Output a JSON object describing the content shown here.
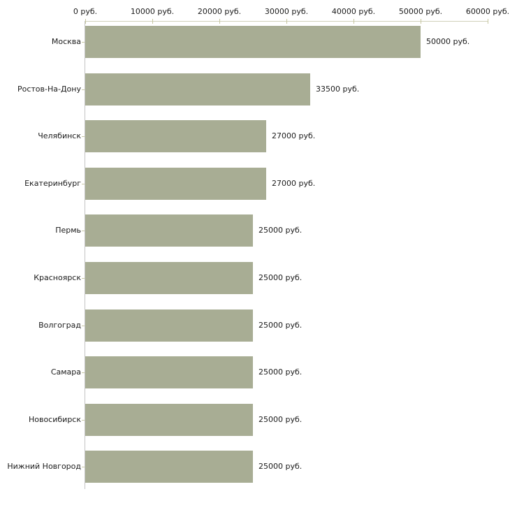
{
  "chart_data": {
    "type": "bar",
    "orientation": "horizontal",
    "title": "",
    "xlabel": "",
    "ylabel": "",
    "grid": false,
    "legend": false,
    "categories": [
      "Москва",
      "Ростов-На-Дону",
      "Челябинск",
      "Екатеринбург",
      "Пермь",
      "Красноярск",
      "Волгоград",
      "Самара",
      "Новосибирск",
      "Нижний Новгород"
    ],
    "values": [
      50000,
      33500,
      27000,
      27000,
      25000,
      25000,
      25000,
      25000,
      25000,
      25000
    ],
    "value_labels": [
      "50000 руб.",
      "33500 руб.",
      "27000 руб.",
      "27000 руб.",
      "25000 руб.",
      "25000 руб.",
      "25000 руб.",
      "25000 руб.",
      "25000 руб.",
      "25000 руб."
    ],
    "x_axis": {
      "position": "top",
      "min": 0,
      "max": 60000,
      "ticks": [
        0,
        10000,
        20000,
        30000,
        40000,
        50000,
        60000
      ],
      "tick_labels": [
        "0 руб.",
        "10000 руб.",
        "20000 руб.",
        "30000 руб.",
        "40000 руб.",
        "50000 руб.",
        "60000 руб."
      ]
    },
    "colors": {
      "bar": "#a8ad94",
      "axis_line": "#cfcfba",
      "y_axis_line": "#c3c3c3",
      "tick": "#c6c69f",
      "y_tick": "#c9c9a6",
      "text": "#1a1a1a",
      "background": "#ffffff"
    }
  }
}
